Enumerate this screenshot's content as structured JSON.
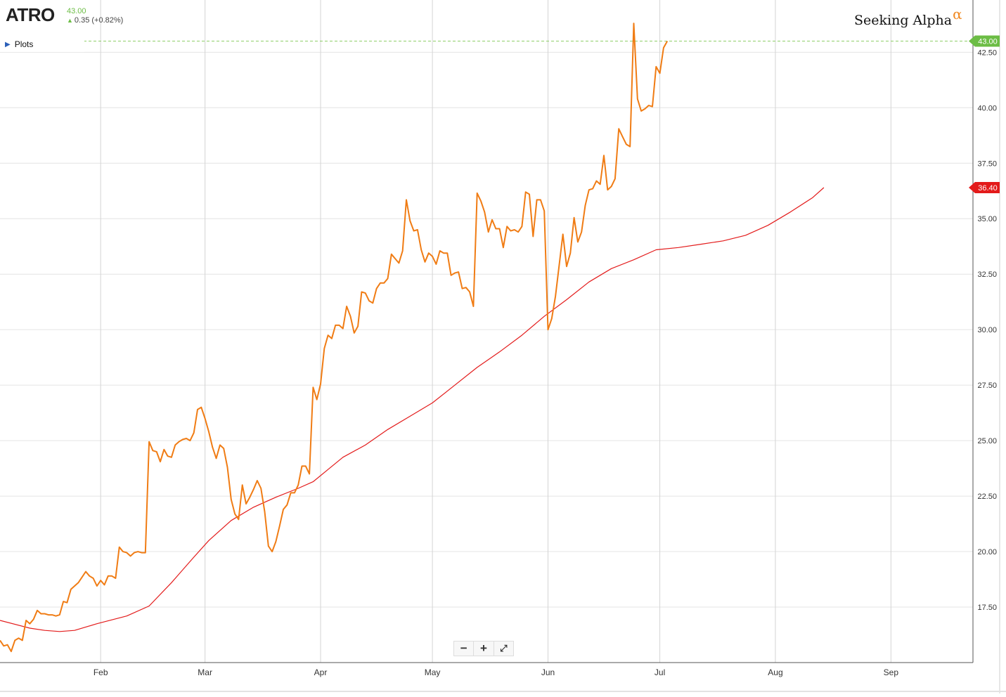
{
  "header": {
    "ticker": "ATRO",
    "last_price": "43.00",
    "change": "0.35 (+0.82%)",
    "plots_label": "Plots",
    "brand": "Seeking Alpha",
    "brand_symbol": "α"
  },
  "zoom_controls": {
    "zoom_out": "−",
    "zoom_in": "+",
    "fullscreen": "⤢"
  },
  "chart_data": {
    "type": "line",
    "x_ticks": [
      {
        "label": "Feb",
        "day": 31
      },
      {
        "label": "Mar",
        "day": 59
      },
      {
        "label": "Apr",
        "day": 90
      },
      {
        "label": "May",
        "day": 120
      },
      {
        "label": "Jun",
        "day": 151
      },
      {
        "label": "Jul",
        "day": 181
      },
      {
        "label": "Aug",
        "day": 212
      },
      {
        "label": "Sep",
        "day": 243
      }
    ],
    "xlim": [
      4,
      265
    ],
    "ylim": [
      15.0,
      44.6
    ],
    "y_ticks": [
      "17.50",
      "20.00",
      "22.50",
      "25.00",
      "27.50",
      "30.00",
      "32.50",
      "35.00",
      "37.50",
      "40.00",
      "42.50"
    ],
    "grid": true,
    "price_label": "43.00",
    "ma_label": "36.40",
    "colors": {
      "price": "#f07c14",
      "ma": "#e31b1b",
      "last_badge": "#6cbd45",
      "ma_badge": "#e31b1b",
      "grid": "#e4e4e4"
    },
    "series": [
      {
        "key": "price",
        "points": [
          [
            4,
            16.0
          ],
          [
            5,
            15.75
          ],
          [
            6,
            15.8
          ],
          [
            7,
            15.5
          ],
          [
            8,
            16.0
          ],
          [
            9,
            16.1
          ],
          [
            10,
            16.0
          ],
          [
            11,
            16.9
          ],
          [
            12,
            16.75
          ],
          [
            13,
            16.95
          ],
          [
            14,
            17.35
          ],
          [
            15,
            17.2
          ],
          [
            16,
            17.2
          ],
          [
            17,
            17.15
          ],
          [
            18,
            17.15
          ],
          [
            19,
            17.1
          ],
          [
            20,
            17.15
          ],
          [
            21,
            17.75
          ],
          [
            22,
            17.7
          ],
          [
            23,
            18.3
          ],
          [
            24,
            18.45
          ],
          [
            25,
            18.6
          ],
          [
            26,
            18.85
          ],
          [
            27,
            19.1
          ],
          [
            28,
            18.9
          ],
          [
            29,
            18.8
          ],
          [
            30,
            18.45
          ],
          [
            31,
            18.7
          ],
          [
            32,
            18.5
          ],
          [
            33,
            18.9
          ],
          [
            34,
            18.9
          ],
          [
            35,
            18.8
          ],
          [
            36,
            20.2
          ],
          [
            37,
            20.0
          ],
          [
            38,
            19.95
          ],
          [
            39,
            19.8
          ],
          [
            40,
            19.95
          ],
          [
            41,
            20.0
          ],
          [
            42,
            19.95
          ],
          [
            43,
            19.95
          ],
          [
            44,
            24.95
          ],
          [
            45,
            24.55
          ],
          [
            46,
            24.5
          ],
          [
            47,
            24.05
          ],
          [
            48,
            24.6
          ],
          [
            49,
            24.3
          ],
          [
            50,
            24.25
          ],
          [
            51,
            24.8
          ],
          [
            52,
            24.95
          ],
          [
            53,
            25.05
          ],
          [
            54,
            25.1
          ],
          [
            55,
            25.0
          ],
          [
            56,
            25.35
          ],
          [
            57,
            26.4
          ],
          [
            58,
            26.5
          ],
          [
            59,
            26.0
          ],
          [
            60,
            25.4
          ],
          [
            61,
            24.7
          ],
          [
            62,
            24.2
          ],
          [
            63,
            24.8
          ],
          [
            64,
            24.65
          ],
          [
            65,
            23.8
          ],
          [
            66,
            22.35
          ],
          [
            67,
            21.7
          ],
          [
            68,
            21.45
          ],
          [
            69,
            23.0
          ],
          [
            70,
            22.15
          ],
          [
            71,
            22.45
          ],
          [
            72,
            22.8
          ],
          [
            73,
            23.2
          ],
          [
            74,
            22.85
          ],
          [
            75,
            21.8
          ],
          [
            76,
            20.25
          ],
          [
            77,
            20.0
          ],
          [
            78,
            20.45
          ],
          [
            79,
            21.15
          ],
          [
            80,
            21.9
          ],
          [
            81,
            22.1
          ],
          [
            82,
            22.65
          ],
          [
            83,
            22.65
          ],
          [
            84,
            23.0
          ],
          [
            85,
            23.85
          ],
          [
            86,
            23.85
          ],
          [
            87,
            23.5
          ],
          [
            88,
            27.4
          ],
          [
            89,
            26.85
          ],
          [
            90,
            27.55
          ],
          [
            91,
            29.15
          ],
          [
            92,
            29.75
          ],
          [
            93,
            29.6
          ],
          [
            94,
            30.2
          ],
          [
            95,
            30.2
          ],
          [
            96,
            30.05
          ],
          [
            97,
            31.05
          ],
          [
            98,
            30.6
          ],
          [
            99,
            29.85
          ],
          [
            100,
            30.15
          ],
          [
            101,
            31.7
          ],
          [
            102,
            31.65
          ],
          [
            103,
            31.3
          ],
          [
            104,
            31.2
          ],
          [
            105,
            31.85
          ],
          [
            106,
            32.1
          ],
          [
            107,
            32.1
          ],
          [
            108,
            32.3
          ],
          [
            109,
            33.4
          ],
          [
            110,
            33.2
          ],
          [
            111,
            33.0
          ],
          [
            112,
            33.55
          ],
          [
            113,
            35.85
          ],
          [
            114,
            34.9
          ],
          [
            115,
            34.45
          ],
          [
            116,
            34.5
          ],
          [
            117,
            33.6
          ],
          [
            118,
            33.05
          ],
          [
            119,
            33.45
          ],
          [
            120,
            33.3
          ],
          [
            121,
            32.95
          ],
          [
            122,
            33.55
          ],
          [
            123,
            33.45
          ],
          [
            124,
            33.45
          ],
          [
            125,
            32.45
          ],
          [
            126,
            32.55
          ],
          [
            127,
            32.6
          ],
          [
            128,
            31.85
          ],
          [
            129,
            31.9
          ],
          [
            130,
            31.7
          ],
          [
            131,
            31.05
          ],
          [
            132,
            36.15
          ],
          [
            133,
            35.8
          ],
          [
            134,
            35.3
          ],
          [
            135,
            34.4
          ],
          [
            136,
            34.95
          ],
          [
            137,
            34.55
          ],
          [
            138,
            34.55
          ],
          [
            139,
            33.7
          ],
          [
            140,
            34.65
          ],
          [
            141,
            34.45
          ],
          [
            142,
            34.5
          ],
          [
            143,
            34.4
          ],
          [
            144,
            34.65
          ],
          [
            145,
            36.2
          ],
          [
            146,
            36.1
          ],
          [
            147,
            34.2
          ],
          [
            148,
            35.85
          ],
          [
            149,
            35.85
          ],
          [
            150,
            35.35
          ],
          [
            151,
            30.0
          ],
          [
            152,
            30.5
          ],
          [
            153,
            31.5
          ],
          [
            154,
            32.9
          ],
          [
            155,
            34.3
          ],
          [
            156,
            32.85
          ],
          [
            157,
            33.45
          ],
          [
            158,
            35.05
          ],
          [
            159,
            33.95
          ],
          [
            160,
            34.4
          ],
          [
            161,
            35.6
          ],
          [
            162,
            36.3
          ],
          [
            163,
            36.35
          ],
          [
            164,
            36.7
          ],
          [
            165,
            36.55
          ],
          [
            166,
            37.85
          ],
          [
            167,
            36.3
          ],
          [
            168,
            36.45
          ],
          [
            169,
            36.8
          ],
          [
            170,
            39.05
          ],
          [
            171,
            38.7
          ],
          [
            172,
            38.35
          ],
          [
            173,
            38.25
          ],
          [
            174,
            43.8
          ],
          [
            175,
            40.4
          ],
          [
            176,
            39.85
          ],
          [
            177,
            39.95
          ],
          [
            178,
            40.1
          ],
          [
            179,
            40.05
          ],
          [
            180,
            41.85
          ],
          [
            181,
            41.55
          ],
          [
            182,
            42.7
          ],
          [
            183,
            43.0
          ]
        ]
      },
      {
        "key": "ma",
        "points": [
          [
            4,
            16.9
          ],
          [
            12,
            16.55
          ],
          [
            16,
            16.45
          ],
          [
            20,
            16.4
          ],
          [
            24,
            16.45
          ],
          [
            30,
            16.75
          ],
          [
            38,
            17.1
          ],
          [
            44,
            17.55
          ],
          [
            50,
            18.6
          ],
          [
            56,
            19.75
          ],
          [
            60,
            20.5
          ],
          [
            66,
            21.4
          ],
          [
            72,
            22.0
          ],
          [
            78,
            22.45
          ],
          [
            84,
            22.85
          ],
          [
            88,
            23.15
          ],
          [
            92,
            23.7
          ],
          [
            96,
            24.25
          ],
          [
            102,
            24.8
          ],
          [
            108,
            25.5
          ],
          [
            114,
            26.1
          ],
          [
            120,
            26.7
          ],
          [
            126,
            27.5
          ],
          [
            132,
            28.3
          ],
          [
            138,
            29.0
          ],
          [
            144,
            29.75
          ],
          [
            150,
            30.6
          ],
          [
            156,
            31.35
          ],
          [
            162,
            32.15
          ],
          [
            168,
            32.75
          ],
          [
            174,
            33.15
          ],
          [
            180,
            33.6
          ],
          [
            186,
            33.7
          ],
          [
            192,
            33.85
          ],
          [
            198,
            34.0
          ],
          [
            204,
            34.25
          ],
          [
            210,
            34.7
          ],
          [
            216,
            35.3
          ],
          [
            222,
            35.95
          ],
          [
            225,
            36.4
          ]
        ]
      }
    ]
  }
}
